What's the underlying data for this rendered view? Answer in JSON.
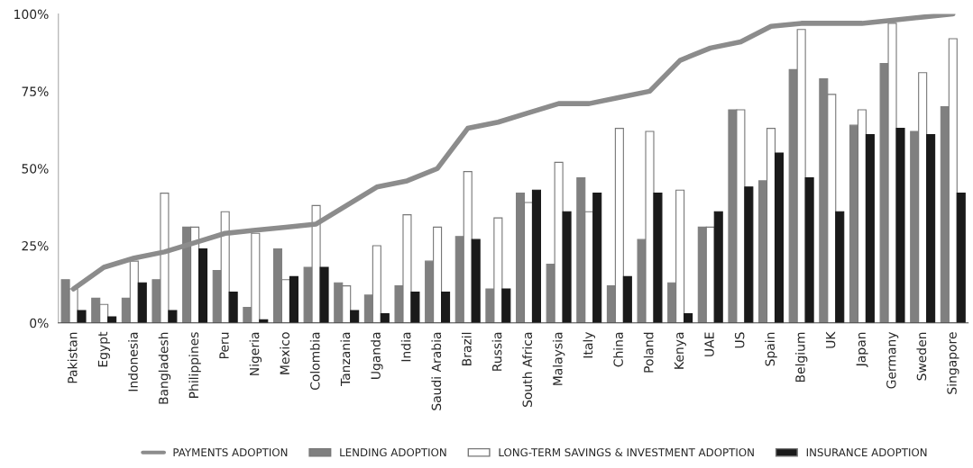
{
  "chart_data": {
    "type": "bar",
    "categories": [
      "Pakistan",
      "Egypt",
      "Indonesia",
      "Bangladesh",
      "Philippines",
      "Peru",
      "Nigeria",
      "Mexico",
      "Colombia",
      "Tanzania",
      "Uganda",
      "India",
      "Saudi Arabia",
      "Brazil",
      "Russia",
      "South Africa",
      "Malaysia",
      "Italy",
      "China",
      "Poland",
      "Kenya",
      "UAE",
      "US",
      "Spain",
      "Belgium",
      "UK",
      "Japan",
      "Germany",
      "Sweden",
      "Singapore"
    ],
    "series": [
      {
        "name": "PAYMENTS ADOPTION",
        "type": "line",
        "color": "#8c8c8c",
        "values": [
          11,
          18,
          21,
          23,
          26,
          29,
          30,
          31,
          32,
          38,
          44,
          46,
          50,
          63,
          65,
          68,
          71,
          71,
          73,
          75,
          85,
          89,
          91,
          96,
          97,
          97,
          97,
          98,
          99,
          100
        ]
      },
      {
        "name": "LENDING ADOPTION",
        "color": "#808080",
        "values": [
          14,
          8,
          8,
          14,
          31,
          17,
          5,
          24,
          18,
          13,
          9,
          12,
          20,
          28,
          11,
          42,
          19,
          47,
          12,
          27,
          13,
          31,
          69,
          46,
          82,
          79,
          64,
          84,
          62,
          70
        ]
      },
      {
        "name": "LONG-TERM SAVINGS & INVESTMENT ADOPTION",
        "color": "#ffffff",
        "values": [
          11,
          6,
          20,
          42,
          31,
          36,
          29,
          14,
          38,
          12,
          25,
          35,
          31,
          49,
          34,
          39,
          52,
          36,
          63,
          62,
          43,
          31,
          69,
          63,
          95,
          74,
          69,
          97,
          81,
          92
        ]
      },
      {
        "name": "INSURANCE ADOPTION",
        "color": "#1a1a1a",
        "values": [
          4,
          2,
          13,
          4,
          24,
          10,
          1,
          15,
          18,
          4,
          3,
          10,
          10,
          27,
          11,
          43,
          36,
          42,
          15,
          42,
          3,
          36,
          44,
          55,
          47,
          36,
          61,
          63,
          61,
          42
        ]
      }
    ],
    "ylim": [
      0,
      100
    ],
    "yticks": [
      {
        "value": 0,
        "label": "0%"
      },
      {
        "value": 25,
        "label": "25%"
      },
      {
        "value": 50,
        "label": "50%"
      },
      {
        "value": 75,
        "label": "75%"
      },
      {
        "value": 100,
        "label": "100%"
      }
    ],
    "legend": "bottom",
    "grid": false
  }
}
